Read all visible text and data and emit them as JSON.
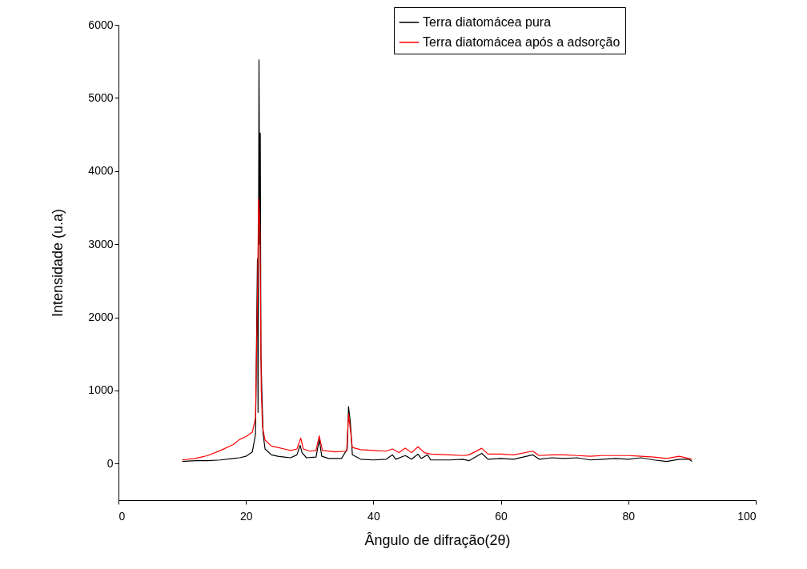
{
  "chart_data": {
    "type": "line",
    "xlabel": "Ângulo de difração(2θ)",
    "ylabel": "Intensidade (u.a)",
    "xlim": [
      0,
      100
    ],
    "xticks": [
      0,
      20,
      40,
      60,
      80,
      100
    ],
    "ylim": [
      -500,
      6000
    ],
    "yticks": [
      0,
      1000,
      2000,
      3000,
      4000,
      5000,
      6000
    ],
    "grid": false,
    "legend": "top right",
    "marker": "none",
    "line_style": "solid",
    "series": [
      {
        "name": "Terra diatomácea pura",
        "color": "#000000",
        "x": [
          10,
          12,
          14,
          16,
          18,
          19,
          20,
          21,
          21.5,
          21.8,
          21.9,
          22.05,
          22.15,
          22.25,
          22.35,
          22.5,
          22.7,
          23,
          24,
          25,
          26,
          27,
          28,
          28.5,
          28.8,
          29.5,
          31,
          31.5,
          31.9,
          33,
          35,
          35.9,
          36.1,
          36.4,
          36.7,
          38,
          40,
          42,
          43,
          43.5,
          45,
          46,
          47,
          47.5,
          48.5,
          49,
          52,
          54,
          55,
          57,
          58,
          60,
          62,
          65,
          66,
          68,
          70,
          72,
          74,
          76,
          78,
          80,
          82,
          84,
          86,
          88,
          89.5,
          90
        ],
        "values": [
          30,
          40,
          40,
          50,
          70,
          80,
          100,
          160,
          400,
          2800,
          700,
          5520,
          3000,
          4520,
          1500,
          970,
          400,
          200,
          120,
          100,
          90,
          80,
          120,
          250,
          150,
          80,
          90,
          330,
          100,
          70,
          70,
          200,
          780,
          550,
          120,
          60,
          50,
          60,
          120,
          60,
          110,
          60,
          130,
          70,
          120,
          50,
          50,
          60,
          40,
          140,
          60,
          70,
          60,
          120,
          60,
          80,
          70,
          80,
          50,
          60,
          70,
          60,
          80,
          50,
          30,
          60,
          60,
          30
        ]
      },
      {
        "name": "Terra diatomácea após a adsorção",
        "color": "#ff0000",
        "x": [
          10,
          12,
          14,
          16,
          18,
          19,
          20,
          21,
          21.5,
          21.8,
          22.0,
          22.2,
          22.4,
          22.6,
          23,
          24,
          25,
          26,
          27,
          28,
          28.6,
          29,
          30,
          31,
          31.5,
          32,
          34,
          35.8,
          36.1,
          36.4,
          36.7,
          38,
          40,
          42,
          43,
          44,
          45,
          46,
          47,
          48,
          49,
          52,
          54,
          55,
          57,
          58,
          60,
          62,
          65,
          66,
          68,
          70,
          72,
          74,
          76,
          78,
          80,
          82,
          84,
          86,
          88,
          90
        ],
        "values": [
          50,
          70,
          110,
          180,
          260,
          330,
          370,
          430,
          620,
          2250,
          3620,
          3200,
          1000,
          500,
          320,
          240,
          220,
          200,
          180,
          200,
          350,
          200,
          170,
          180,
          380,
          180,
          160,
          170,
          680,
          450,
          220,
          190,
          180,
          170,
          200,
          150,
          210,
          150,
          230,
          150,
          130,
          120,
          110,
          120,
          210,
          130,
          130,
          120,
          170,
          110,
          120,
          120,
          110,
          100,
          110,
          110,
          110,
          100,
          90,
          70,
          100,
          60
        ]
      }
    ]
  }
}
